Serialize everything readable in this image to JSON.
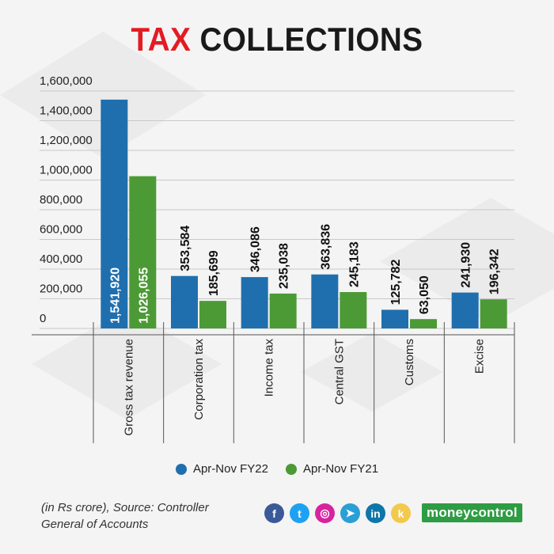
{
  "title": {
    "accent": "TAX",
    "rest": " COLLECTIONS"
  },
  "chart_data": {
    "type": "bar",
    "categories": [
      "Gross tax revenue",
      "Corporation tax",
      "Income tax",
      "Central GST",
      "Customs",
      "Excise"
    ],
    "series": [
      {
        "name": "Apr-Nov FY22",
        "color": "#1f6fae",
        "values": [
          1541920,
          353584,
          346086,
          363836,
          125782,
          241930
        ],
        "labels": [
          "1,541,920",
          "353,584",
          "346,086",
          "363,836",
          "125,782",
          "241,930"
        ]
      },
      {
        "name": "Apr-Nov FY21",
        "color": "#4c9a36",
        "values": [
          1026055,
          185699,
          235038,
          245183,
          63050,
          196342
        ],
        "labels": [
          "1,026,055",
          "185,699",
          "235,038",
          "245,183",
          "63,050",
          "196,342"
        ]
      }
    ],
    "ylim": [
      0,
      1600000
    ],
    "yticks": [
      0,
      200000,
      400000,
      600000,
      800000,
      1000000,
      1200000,
      1400000,
      1600000
    ],
    "ytick_labels": [
      "0",
      "200,000",
      "400,000",
      "600,000",
      "800,000",
      "1,000,000",
      "1,200,000",
      "1,400,000",
      "1,600,000"
    ],
    "grid": true,
    "legend": "bottom"
  },
  "footer": {
    "source": "(in Rs crore), Source: Controller General of Accounts",
    "brand_money": "money",
    "brand_control": "control"
  },
  "social_icons": [
    {
      "name": "facebook-icon",
      "glyph": "f",
      "color": "#3b5998"
    },
    {
      "name": "twitter-icon",
      "glyph": "t",
      "color": "#1da1f2"
    },
    {
      "name": "instagram-icon",
      "glyph": "◎",
      "color": "#d6249f"
    },
    {
      "name": "telegram-icon",
      "glyph": "➤",
      "color": "#2a9fd6"
    },
    {
      "name": "linkedin-icon",
      "glyph": "in",
      "color": "#0e76a8"
    },
    {
      "name": "koo-icon",
      "glyph": "k",
      "color": "#f2c94c"
    }
  ]
}
